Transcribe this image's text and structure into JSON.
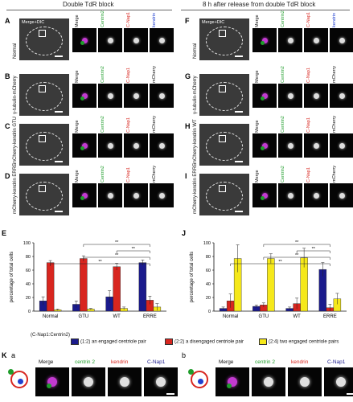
{
  "headers": {
    "left": "Double TdR block",
    "right": "8 h after release from double TdR block"
  },
  "panel_letters": [
    "A",
    "B",
    "C",
    "D",
    "E",
    "F",
    "G",
    "H",
    "I",
    "J",
    "K"
  ],
  "row_labels": {
    "A": "Normal",
    "B": "γ-tubulin-mCherry",
    "C": "mCherry-kendrin GTU",
    "D": "mCherry-kendrin ERRE",
    "F": "Normal",
    "G": "γ-tubulin-mCherry",
    "H": "mCherry-kendrin WT",
    "I": "mCherry-kendrin ERRE"
  },
  "merge_dic": "Merge+DIC",
  "channels_top": [
    "Merge",
    "Centrin2",
    "C-Nap1",
    "kendrin"
  ],
  "channels_mid": [
    "Merge",
    "Centrin2",
    "C-Nap1",
    "mCherry"
  ],
  "colors": {
    "green": "#1f9d2b",
    "red": "#d8261f",
    "blue": "#1f3fd0",
    "navy": "#1a1a8c",
    "yellow": "#f5e81a",
    "magenta": "#c23ad0"
  },
  "chart_data": [
    {
      "type": "bar",
      "panel": "E",
      "ylabel": "percentage of total cells",
      "categories": [
        "Normal",
        "GTU",
        "WT",
        "ERRE"
      ],
      "ylim": [
        0,
        100
      ],
      "yticks": [
        0,
        20,
        40,
        60,
        80,
        100
      ],
      "series": [
        {
          "name": "(1:2) an engaged centriole pair",
          "color": "#1a1a8c",
          "values": [
            15,
            10,
            21,
            71
          ],
          "errors": [
            6,
            5,
            9,
            4
          ]
        },
        {
          "name": "(2:2) a disengaged centriole pair",
          "color": "#d8261f",
          "values": [
            71,
            77,
            65,
            16
          ],
          "errors": [
            3,
            4,
            5,
            6
          ]
        },
        {
          "name": "(2:4) two engaged centriole pairs",
          "color": "#f5e81a",
          "values": [
            2,
            3,
            4,
            6
          ],
          "errors": [
            1,
            1,
            2,
            5
          ]
        }
      ],
      "significance": [
        "**",
        "**",
        "**",
        "**"
      ]
    },
    {
      "type": "bar",
      "panel": "J",
      "ylabel": "percentage of total cells",
      "categories": [
        "Normal",
        "GTU",
        "WT",
        "ERRE"
      ],
      "ylim": [
        0,
        100
      ],
      "yticks": [
        0,
        20,
        40,
        60,
        80,
        100
      ],
      "series": [
        {
          "name": "(1:2) an engaged centriole pair",
          "color": "#1a1a8c",
          "values": [
            4,
            7,
            4,
            61
          ],
          "errors": [
            2,
            2,
            2,
            10
          ]
        },
        {
          "name": "(2:2) a disengaged centriole pair",
          "color": "#d8261f",
          "values": [
            15,
            9,
            11,
            5
          ],
          "errors": [
            10,
            3,
            8,
            5
          ]
        },
        {
          "name": "(2:4) two engaged centriole pairs",
          "color": "#f5e81a",
          "values": [
            77,
            77,
            78,
            18
          ],
          "errors": [
            20,
            7,
            14,
            8
          ]
        }
      ],
      "significance": [
        "**",
        "**",
        "**",
        "**"
      ]
    }
  ],
  "legend_prefix": "(C-Nap1:Centrin2)",
  "K": {
    "a": {
      "letter": "a",
      "channels": [
        "Merge",
        "centrin 2",
        "kendrin",
        "C-Nap1"
      ]
    },
    "b": {
      "letter": "b",
      "channels": [
        "Merge",
        "centrin 2",
        "kendrin",
        "C-Nap1"
      ]
    }
  }
}
